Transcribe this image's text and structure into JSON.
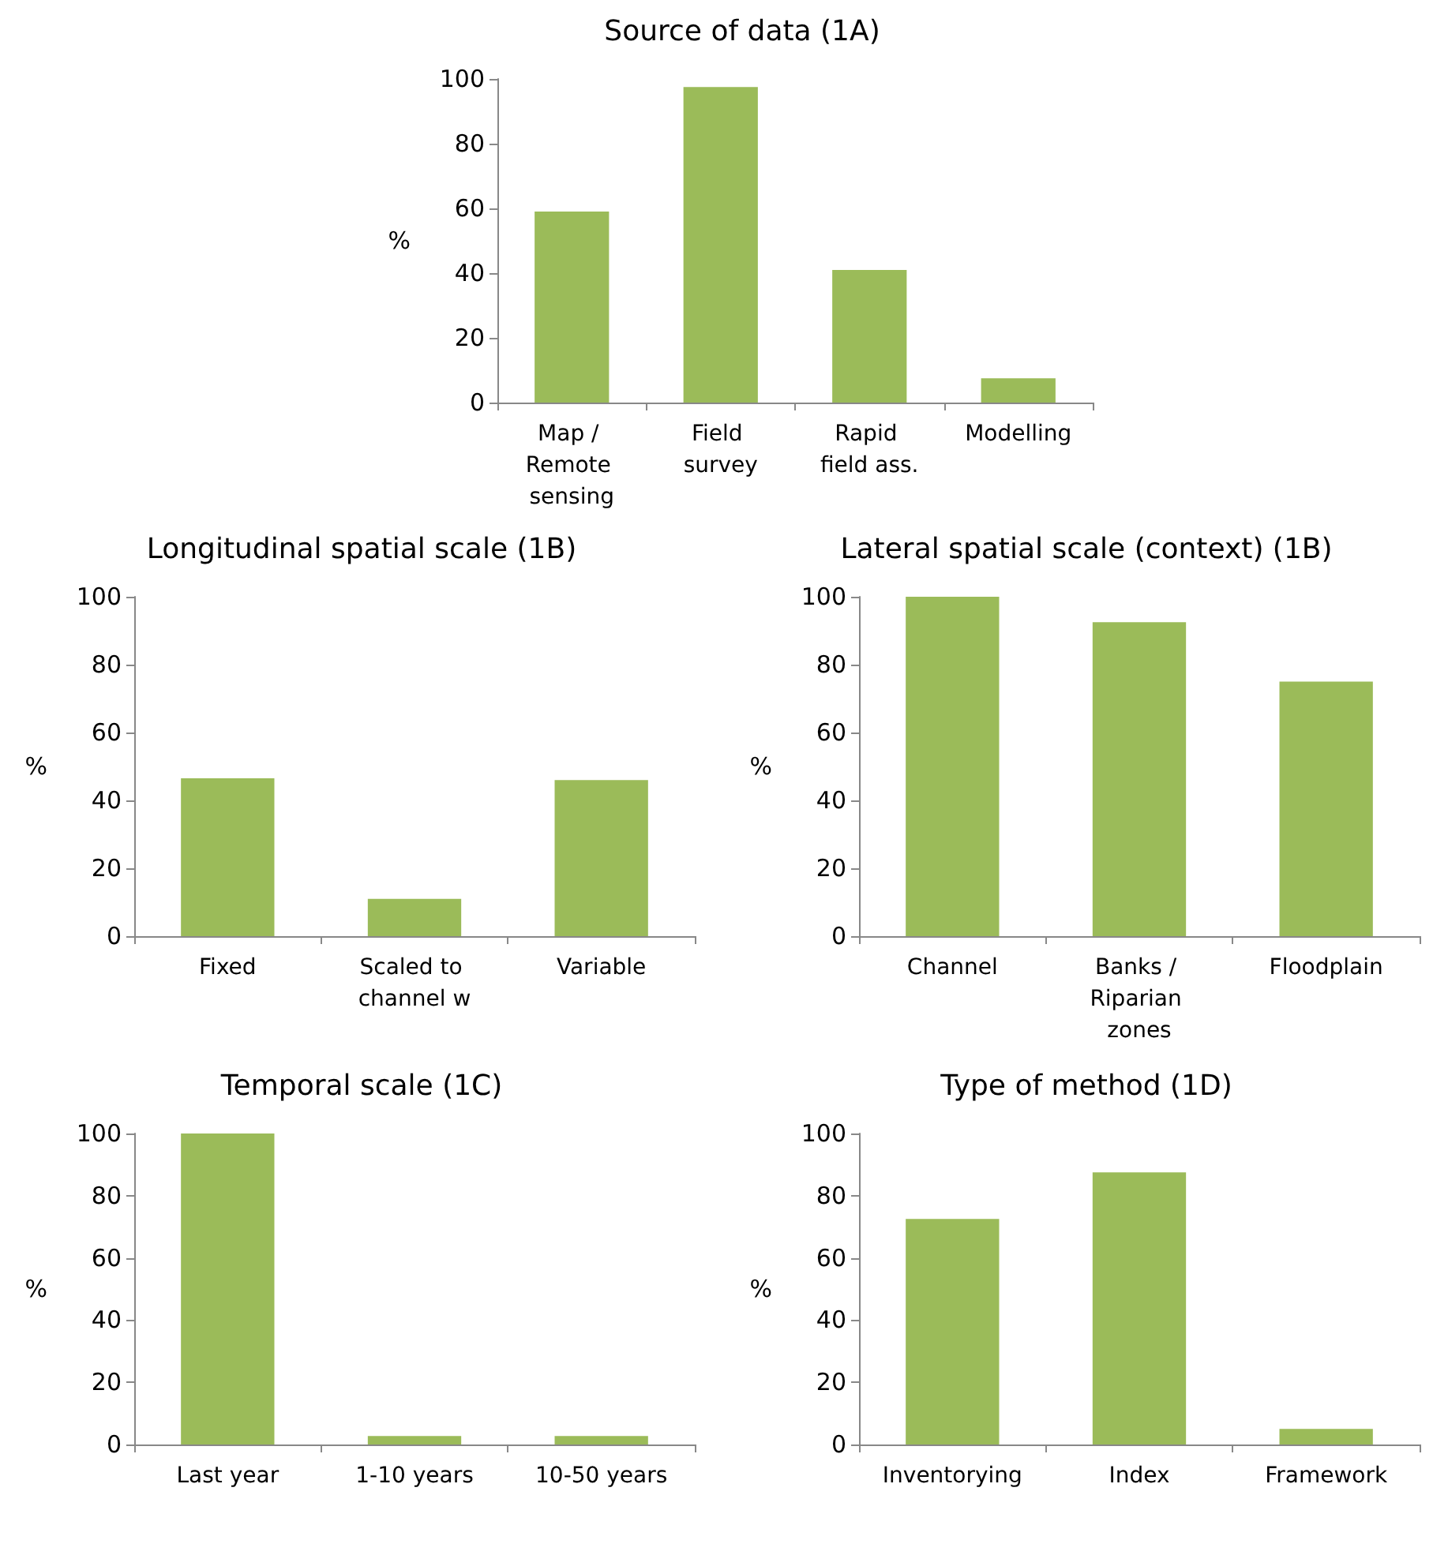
{
  "chart_data": [
    {
      "type": "bar",
      "title": "Source of data (1A)",
      "ylabel": "%",
      "categories": [
        "Map / Remote sensing",
        "Field survey",
        "Rapid field ass.",
        "Modelling"
      ],
      "values": [
        59,
        97.5,
        41,
        7.5
      ],
      "color": "#9bbb59",
      "ylim": [
        0,
        100
      ],
      "yticks": [
        0,
        20,
        40,
        60,
        80,
        100
      ]
    },
    {
      "type": "bar",
      "title": "Longitudinal spatial scale (1B)",
      "ylabel": "%",
      "categories": [
        "Fixed",
        "Scaled to channel w",
        "Variable"
      ],
      "values": [
        46.5,
        11,
        46
      ],
      "color": "#9bbb59",
      "ylim": [
        0,
        100
      ],
      "yticks": [
        0,
        20,
        40,
        60,
        80,
        100
      ]
    },
    {
      "type": "bar",
      "title": "Lateral spatial scale (context) (1B)",
      "ylabel": "%",
      "categories": [
        "Channel",
        "Banks / Riparian zones",
        "Floodplain"
      ],
      "values": [
        100,
        92.5,
        75
      ],
      "color": "#9bbb59",
      "ylim": [
        0,
        100
      ],
      "yticks": [
        0,
        20,
        40,
        60,
        80,
        100
      ]
    },
    {
      "type": "bar",
      "title": "Temporal scale (1C)",
      "ylabel": "%",
      "categories": [
        "Last year",
        "1-10 years",
        "10-50 years"
      ],
      "values": [
        100,
        2.7,
        2.7
      ],
      "color": "#9bbb59",
      "ylim": [
        0,
        100
      ],
      "yticks": [
        0,
        20,
        40,
        60,
        80,
        100
      ]
    },
    {
      "type": "bar",
      "title": "Type of method (1D)",
      "ylabel": "%",
      "categories": [
        "Inventorying",
        "Index",
        "Framework"
      ],
      "values": [
        72.5,
        87.5,
        5
      ],
      "color": "#9bbb59",
      "ylim": [
        0,
        100
      ],
      "yticks": [
        0,
        20,
        40,
        60,
        80,
        100
      ]
    }
  ]
}
